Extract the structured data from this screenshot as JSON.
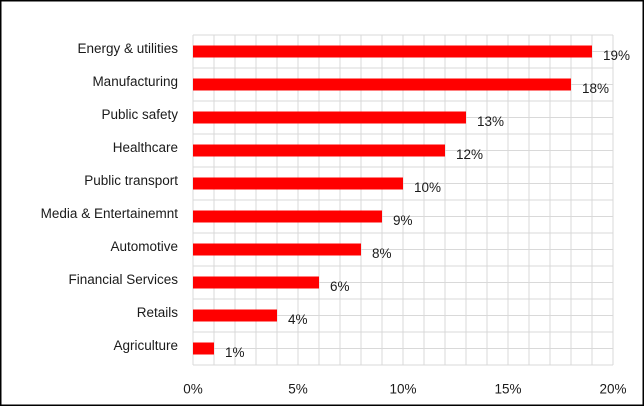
{
  "chart_data": {
    "type": "bar",
    "orientation": "horizontal",
    "categories": [
      "Energy & utilities",
      "Manufacturing",
      "Public safety",
      "Healthcare",
      "Public transport",
      "Media & Entertainemnt",
      "Automotive",
      "Financial Services",
      "Retails",
      "Agriculture"
    ],
    "values": [
      19,
      18,
      13,
      12,
      10,
      9,
      8,
      6,
      4,
      1
    ],
    "data_labels": [
      "19%",
      "18%",
      "13%",
      "12%",
      "10%",
      "9%",
      "8%",
      "6%",
      "4%",
      "1%"
    ],
    "x_ticks": [
      "0%",
      "5%",
      "10%",
      "15%",
      "20%"
    ],
    "x_tick_values": [
      0,
      5,
      10,
      15,
      20
    ],
    "xlim": [
      0,
      20
    ],
    "bar_color": "#ff0000",
    "grid": true,
    "grid_color": "#d9d9d9",
    "legend": "none"
  }
}
